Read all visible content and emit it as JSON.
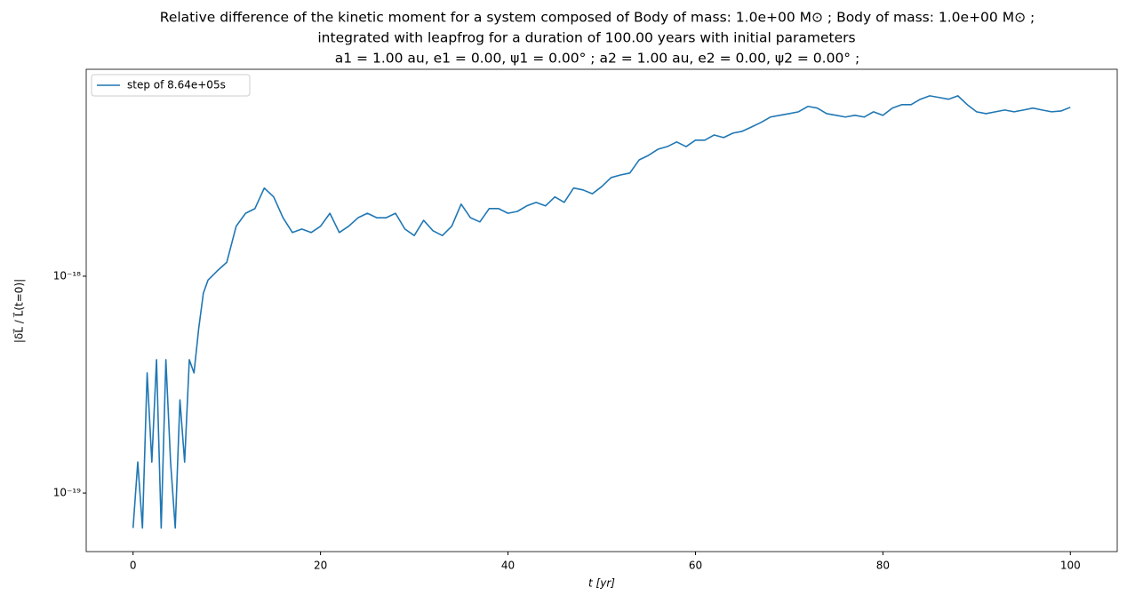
{
  "chart_data": {
    "type": "line",
    "title": [
      "Relative difference of the kinetic moment for a system composed of Body of mass: 1.0e+00 M⊙ ; Body of mass: 1.0e+00 M⊙ ;",
      "integrated with leapfrog for a duration of 100.00 years with initial parameters",
      "a1 = 1.00 au, e1 = 0.00, ψ1 = 0.00° ; a2 = 1.00 au, e2 = 0.00, ψ2 = 0.00° ;"
    ],
    "x_label": "t [yr]",
    "y_label": "|δL⃗ / L⃗(t=0)|",
    "x": [
      0,
      0.5,
      1,
      1.5,
      2,
      2.5,
      3,
      3.5,
      4,
      4.5,
      5,
      5.5,
      6,
      6.5,
      7,
      7.5,
      8,
      9,
      10,
      11,
      12,
      13,
      14,
      15,
      16,
      17,
      18,
      19,
      20,
      21,
      22,
      23,
      24,
      25,
      26,
      27,
      28,
      29,
      30,
      31,
      32,
      33,
      34,
      35,
      36,
      37,
      38,
      39,
      40,
      41,
      42,
      43,
      44,
      45,
      46,
      47,
      48,
      49,
      50,
      51,
      52,
      53,
      54,
      55,
      56,
      57,
      58,
      59,
      60,
      61,
      62,
      63,
      64,
      65,
      66,
      67,
      68,
      69,
      70,
      71,
      72,
      73,
      74,
      75,
      76,
      77,
      78,
      79,
      80,
      81,
      82,
      83,
      84,
      85,
      86,
      87,
      88,
      89,
      90,
      91,
      92,
      93,
      94,
      95,
      96,
      97,
      98,
      99,
      100
    ],
    "series": [
      {
        "name": "step of 8.64e+05s",
        "color": "#1f77b4",
        "values": [
          6.9e-20,
          1.39e-19,
          6.9e-20,
          3.58e-19,
          1.39e-19,
          4.12e-19,
          6.9e-20,
          4.12e-19,
          1.39e-19,
          6.9e-20,
          2.69e-19,
          1.39e-19,
          4.12e-19,
          3.58e-19,
          5.73e-19,
          8.36e-19,
          9.6e-19,
          1.06e-18,
          1.16e-18,
          1.7e-18,
          1.95e-18,
          2.05e-18,
          2.55e-18,
          2.32e-18,
          1.86e-18,
          1.59e-18,
          1.65e-18,
          1.59e-18,
          1.7e-18,
          1.95e-18,
          1.59e-18,
          1.7e-18,
          1.86e-18,
          1.95e-18,
          1.86e-18,
          1.86e-18,
          1.95e-18,
          1.65e-18,
          1.54e-18,
          1.81e-18,
          1.62e-18,
          1.54e-18,
          1.7e-18,
          2.15e-18,
          1.86e-18,
          1.78e-18,
          2.05e-18,
          2.05e-18,
          1.95e-18,
          1.99e-18,
          2.11e-18,
          2.19e-18,
          2.11e-18,
          2.32e-18,
          2.19e-18,
          2.55e-18,
          2.5e-18,
          2.4e-18,
          2.59e-18,
          2.85e-18,
          2.93e-18,
          2.99e-18,
          3.44e-18,
          3.61e-18,
          3.85e-18,
          3.96e-18,
          4.16e-18,
          3.96e-18,
          4.24e-18,
          4.24e-18,
          4.48e-18,
          4.36e-18,
          4.57e-18,
          4.66e-18,
          4.88e-18,
          5.12e-18,
          5.42e-18,
          5.52e-18,
          5.62e-18,
          5.73e-18,
          6.07e-18,
          5.96e-18,
          5.62e-18,
          5.52e-18,
          5.42e-18,
          5.52e-18,
          5.42e-18,
          5.73e-18,
          5.52e-18,
          5.96e-18,
          6.18e-18,
          6.18e-18,
          6.55e-18,
          6.79e-18,
          6.67e-18,
          6.55e-18,
          6.79e-18,
          6.18e-18,
          5.73e-18,
          5.62e-18,
          5.73e-18,
          5.84e-18,
          5.73e-18,
          5.84e-18,
          5.96e-18,
          5.84e-18,
          5.73e-18,
          5.78e-18,
          6.01e-18
        ]
      }
    ],
    "xlim": [
      -5,
      105
    ],
    "xticks": [
      0,
      20,
      40,
      60,
      80,
      100
    ],
    "ylim": [
      5.37e-20,
      9e-18
    ],
    "log_y": true,
    "yticks": [
      {
        "value": 1e-19,
        "label": "10⁻¹⁹"
      },
      {
        "value": 1e-18,
        "label": "10⁻¹⁸"
      }
    ],
    "legend": "upper left"
  }
}
